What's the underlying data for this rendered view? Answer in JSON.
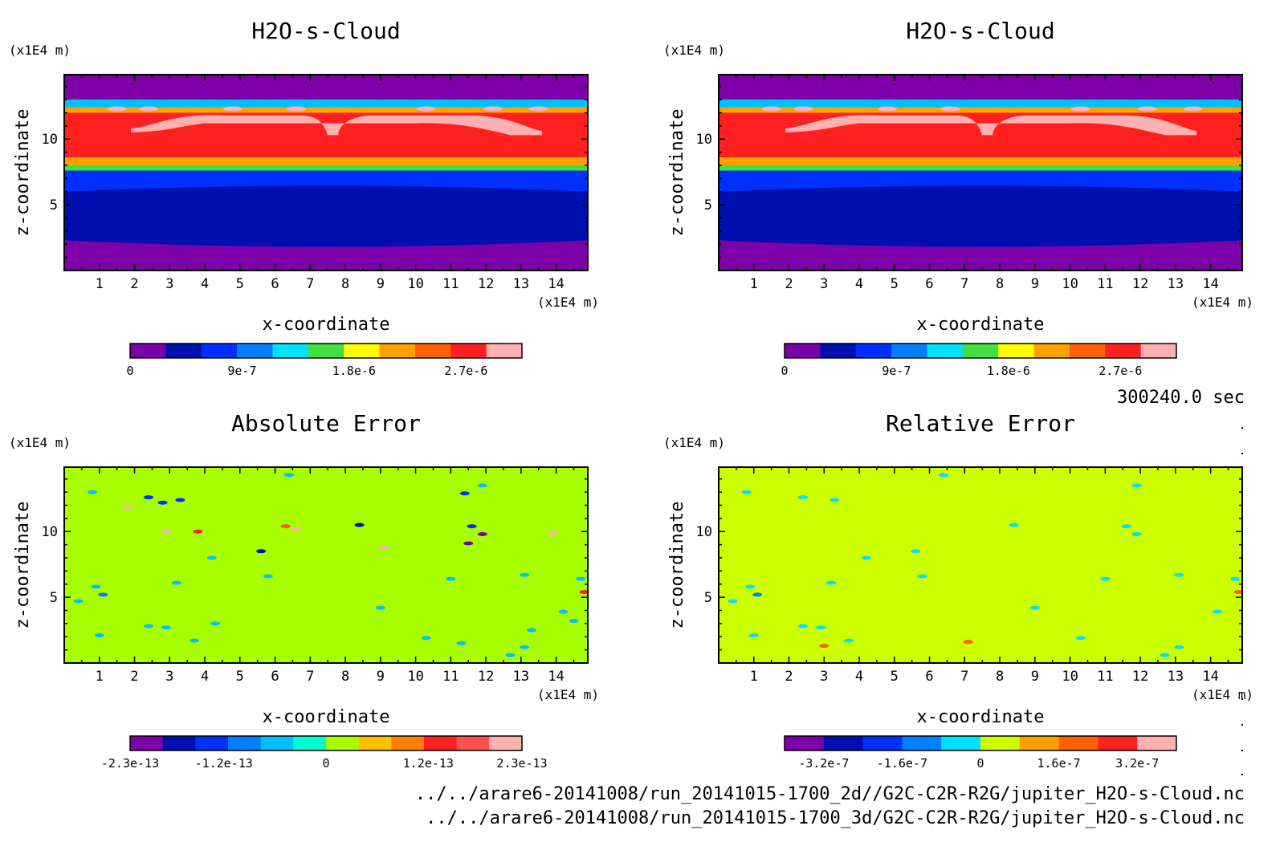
{
  "footer": {
    "time_label": "300240.0 sec",
    "file1": "../../arare6-20141008/run_20141015-1700_2d//G2C-C2R-R2G/jupiter_H2O-s-Cloud.nc",
    "file2": "../../arare6-20141008/run_20141015-1700_3d/G2C-C2R-R2G/jupiter_H2O-s-Cloud.nc"
  },
  "chart_data": [
    {
      "type": "heatmap",
      "title": "H2O-s-Cloud",
      "xlabel": "x-coordinate",
      "ylabel": "z-coordinate",
      "x_unit": "(x1E4 m)",
      "y_unit": "(x1E4 m)",
      "xlim": [
        0,
        14.9
      ],
      "ylim": [
        0,
        14.9
      ],
      "xticks": [
        "1",
        "2",
        "3",
        "4",
        "5",
        "6",
        "7",
        "8",
        "9",
        "10",
        "11",
        "12",
        "13",
        "14"
      ],
      "yticks": [
        "5",
        "10"
      ],
      "colorbar": {
        "colors": [
          "#7d00a8",
          "#0010b0",
          "#0030ff",
          "#0080ff",
          "#00e0ff",
          "#40e040",
          "#ffff00",
          "#ffa000",
          "#ff6000",
          "#ff2020",
          "#ffb0b0"
        ],
        "labels": [
          {
            "value": 0,
            "text": "0"
          },
          {
            "value": 9e-07,
            "text": "9e-7"
          },
          {
            "value": 1.8e-06,
            "text": "1.8e-6"
          },
          {
            "value": 2.7e-06,
            "text": "2.7e-6"
          }
        ],
        "range": [
          0,
          3.15e-06
        ]
      },
      "bands": [
        {
          "z_bottom": 13.0,
          "z_top": 14.9,
          "color": "#7d00a8"
        },
        {
          "z_bottom": 12.4,
          "z_top": 13.0,
          "color": "#00c0ff"
        },
        {
          "z_bottom": 12.0,
          "z_top": 12.4,
          "color": "#ffa000"
        },
        {
          "z_bottom": 8.6,
          "z_top": 12.0,
          "color": "#ff2020"
        },
        {
          "z_bottom": 8.0,
          "z_top": 8.6,
          "color": "#ffa000"
        },
        {
          "z_bottom": 7.6,
          "z_top": 8.0,
          "color": "#40e040"
        },
        {
          "z_bottom": 6.0,
          "z_top": 7.6,
          "color": "#0030ff"
        },
        {
          "z_bottom": 2.3,
          "z_top": 6.0,
          "color": "#0010b0"
        },
        {
          "z_bottom": 0,
          "z_top": 2.3,
          "color": "#7d00a8"
        }
      ]
    },
    {
      "type": "heatmap",
      "title": "H2O-s-Cloud",
      "xlabel": "x-coordinate",
      "ylabel": "z-coordinate",
      "x_unit": "(x1E4 m)",
      "y_unit": "(x1E4 m)",
      "xlim": [
        0,
        14.9
      ],
      "ylim": [
        0,
        14.9
      ],
      "xticks": [
        "1",
        "2",
        "3",
        "4",
        "5",
        "6",
        "7",
        "8",
        "9",
        "10",
        "11",
        "12",
        "13",
        "14"
      ],
      "yticks": [
        "5",
        "10"
      ],
      "colorbar": {
        "colors": [
          "#7d00a8",
          "#0010b0",
          "#0030ff",
          "#0080ff",
          "#00e0ff",
          "#40e040",
          "#ffff00",
          "#ffa000",
          "#ff6000",
          "#ff2020",
          "#ffb0b0"
        ],
        "labels": [
          {
            "value": 0,
            "text": "0"
          },
          {
            "value": 9e-07,
            "text": "9e-7"
          },
          {
            "value": 1.8e-06,
            "text": "1.8e-6"
          },
          {
            "value": 2.7e-06,
            "text": "2.7e-6"
          }
        ],
        "range": [
          0,
          3.15e-06
        ]
      },
      "bands": [
        {
          "z_bottom": 13.0,
          "z_top": 14.9,
          "color": "#7d00a8"
        },
        {
          "z_bottom": 12.4,
          "z_top": 13.0,
          "color": "#00c0ff"
        },
        {
          "z_bottom": 12.0,
          "z_top": 12.4,
          "color": "#ffa000"
        },
        {
          "z_bottom": 8.6,
          "z_top": 12.0,
          "color": "#ff2020"
        },
        {
          "z_bottom": 8.0,
          "z_top": 8.6,
          "color": "#ffa000"
        },
        {
          "z_bottom": 7.6,
          "z_top": 8.0,
          "color": "#40e040"
        },
        {
          "z_bottom": 6.0,
          "z_top": 7.6,
          "color": "#0030ff"
        },
        {
          "z_bottom": 2.3,
          "z_top": 6.0,
          "color": "#0010b0"
        },
        {
          "z_bottom": 0,
          "z_top": 2.3,
          "color": "#7d00a8"
        }
      ]
    },
    {
      "type": "heatmap",
      "title": "Absolute Error",
      "xlabel": "x-coordinate",
      "ylabel": "z-coordinate",
      "x_unit": "(x1E4 m)",
      "y_unit": "(x1E4 m)",
      "xlim": [
        0,
        14.9
      ],
      "ylim": [
        0,
        14.9
      ],
      "xticks": [
        "1",
        "2",
        "3",
        "4",
        "5",
        "6",
        "7",
        "8",
        "9",
        "10",
        "11",
        "12",
        "13",
        "14"
      ],
      "yticks": [
        "5",
        "10"
      ],
      "background": "#a8ff00",
      "colorbar": {
        "colors": [
          "#7d00a8",
          "#0010b0",
          "#0030ff",
          "#0080ff",
          "#00c0ff",
          "#00ffd0",
          "#a8ff00",
          "#ffc000",
          "#ff8000",
          "#ff2020",
          "#ff5050",
          "#ffb0b0"
        ],
        "labels": [
          {
            "value": -2.3e-13,
            "text": "-2.3e-13"
          },
          {
            "value": -1.2e-13,
            "text": "-1.2e-13"
          },
          {
            "value": 0,
            "text": "0"
          },
          {
            "value": 1.2e-13,
            "text": "1.2e-13"
          },
          {
            "value": 2.3e-13,
            "text": "2.3e-13"
          }
        ],
        "range": [
          -2.3e-13,
          2.3e-13
        ]
      },
      "blobs": [
        {
          "x": 0.8,
          "z": 13.0,
          "v": -6e-14
        },
        {
          "x": 2.4,
          "z": 12.6,
          "v": -1.5e-13
        },
        {
          "x": 2.8,
          "z": 12.2,
          "v": -1.5e-13
        },
        {
          "x": 3.3,
          "z": 12.4,
          "v": -1.5e-13
        },
        {
          "x": 1.8,
          "z": 11.8,
          "v": 2e-13
        },
        {
          "x": 2.9,
          "z": 10.0,
          "v": 2e-13
        },
        {
          "x": 3.8,
          "z": 10.0,
          "v": 1.5e-13
        },
        {
          "x": 6.6,
          "z": 10.2,
          "v": 2e-13
        },
        {
          "x": 8.4,
          "z": 10.5,
          "v": -1.6e-13
        },
        {
          "x": 6.3,
          "z": 10.4,
          "v": 1.6e-13
        },
        {
          "x": 9.1,
          "z": 8.8,
          "v": 2e-13
        },
        {
          "x": 11.6,
          "z": 10.4,
          "v": -1.5e-13
        },
        {
          "x": 11.9,
          "z": 9.8,
          "v": -2.3e-13
        },
        {
          "x": 11.5,
          "z": 9.1,
          "v": -2e-13
        },
        {
          "x": 11.9,
          "z": 13.5,
          "v": -6e-14
        },
        {
          "x": 11.4,
          "z": 12.9,
          "v": -1.5e-13
        },
        {
          "x": 5.6,
          "z": 8.5,
          "v": -1.6e-13
        },
        {
          "x": 5.8,
          "z": 6.6,
          "v": -6e-14
        },
        {
          "x": 13.9,
          "z": 9.9,
          "v": 2e-13
        },
        {
          "x": 3.2,
          "z": 6.1,
          "v": -6e-14
        },
        {
          "x": 0.9,
          "z": 5.8,
          "v": -6e-14
        },
        {
          "x": 1.1,
          "z": 5.2,
          "v": -8e-14
        },
        {
          "x": 0.4,
          "z": 4.7,
          "v": -6e-14
        },
        {
          "x": 2.4,
          "z": 2.8,
          "v": -6e-14
        },
        {
          "x": 2.9,
          "z": 2.7,
          "v": -6e-14
        },
        {
          "x": 1.0,
          "z": 2.1,
          "v": -6e-14
        },
        {
          "x": 3.7,
          "z": 1.7,
          "v": -6e-14
        },
        {
          "x": 4.3,
          "z": 3.0,
          "v": -6e-14
        },
        {
          "x": 9.0,
          "z": 4.2,
          "v": -6e-14
        },
        {
          "x": 10.3,
          "z": 1.9,
          "v": -6e-14
        },
        {
          "x": 11.3,
          "z": 1.5,
          "v": -6e-14
        },
        {
          "x": 13.1,
          "z": 1.2,
          "v": -6e-14
        },
        {
          "x": 12.7,
          "z": 0.6,
          "v": -6e-14
        },
        {
          "x": 14.2,
          "z": 3.9,
          "v": -6e-14
        },
        {
          "x": 14.5,
          "z": 3.2,
          "v": -6e-14
        },
        {
          "x": 13.1,
          "z": 6.7,
          "v": -6e-14
        },
        {
          "x": 14.7,
          "z": 6.4,
          "v": -6e-14
        },
        {
          "x": 13.3,
          "z": 2.5,
          "v": -6e-14
        },
        {
          "x": 14.8,
          "z": 5.4,
          "v": 1.2e-13
        },
        {
          "x": 6.4,
          "z": 14.3,
          "v": -6e-14
        },
        {
          "x": 4.2,
          "z": 8.0,
          "v": -6e-14
        },
        {
          "x": 11.0,
          "z": 6.4,
          "v": -6e-14
        }
      ]
    },
    {
      "type": "heatmap",
      "title": "Relative Error",
      "xlabel": "x-coordinate",
      "ylabel": "z-coordinate",
      "x_unit": "(x1E4 m)",
      "y_unit": "(x1E4 m)",
      "xlim": [
        0,
        14.9
      ],
      "ylim": [
        0,
        14.9
      ],
      "xticks": [
        "1",
        "2",
        "3",
        "4",
        "5",
        "6",
        "7",
        "8",
        "9",
        "10",
        "11",
        "12",
        "13",
        "14"
      ],
      "yticks": [
        "5",
        "10"
      ],
      "background": "#ccff00",
      "colorbar": {
        "colors": [
          "#7d00a8",
          "#0010b0",
          "#0030ff",
          "#0080ff",
          "#00e0ff",
          "#ccff00",
          "#ffa000",
          "#ff6000",
          "#ff2020",
          "#ffb0b0"
        ],
        "labels": [
          {
            "value": -3.2e-07,
            "text": "-3.2e-7"
          },
          {
            "value": -1.6e-07,
            "text": "-1.6e-7"
          },
          {
            "value": 0,
            "text": "0"
          },
          {
            "value": 1.6e-07,
            "text": "1.6e-7"
          },
          {
            "value": 3.2e-07,
            "text": "3.2e-7"
          }
        ],
        "range": [
          -4e-07,
          4e-07
        ]
      },
      "blobs": [
        {
          "x": 0.8,
          "z": 13.0,
          "v": -6e-08
        },
        {
          "x": 2.4,
          "z": 12.6,
          "v": -6e-08
        },
        {
          "x": 3.3,
          "z": 12.4,
          "v": -6e-08
        },
        {
          "x": 8.4,
          "z": 10.5,
          "v": -6e-08
        },
        {
          "x": 11.6,
          "z": 10.4,
          "v": -6e-08
        },
        {
          "x": 11.9,
          "z": 9.8,
          "v": -6e-08
        },
        {
          "x": 11.9,
          "z": 13.5,
          "v": -6e-08
        },
        {
          "x": 5.6,
          "z": 8.5,
          "v": -6e-08
        },
        {
          "x": 5.8,
          "z": 6.6,
          "v": -6e-08
        },
        {
          "x": 3.2,
          "z": 6.1,
          "v": -6e-08
        },
        {
          "x": 0.9,
          "z": 5.8,
          "v": -6e-08
        },
        {
          "x": 1.1,
          "z": 5.2,
          "v": -1e-07
        },
        {
          "x": 0.4,
          "z": 4.7,
          "v": -6e-08
        },
        {
          "x": 2.4,
          "z": 2.8,
          "v": -6e-08
        },
        {
          "x": 2.9,
          "z": 2.7,
          "v": -6e-08
        },
        {
          "x": 1.0,
          "z": 2.1,
          "v": -6e-08
        },
        {
          "x": 3.7,
          "z": 1.7,
          "v": -6e-08
        },
        {
          "x": 9.0,
          "z": 4.2,
          "v": -6e-08
        },
        {
          "x": 10.3,
          "z": 1.9,
          "v": -6e-08
        },
        {
          "x": 13.1,
          "z": 1.2,
          "v": -6e-08
        },
        {
          "x": 12.7,
          "z": 0.6,
          "v": -6e-08
        },
        {
          "x": 14.2,
          "z": 3.9,
          "v": -6e-08
        },
        {
          "x": 13.1,
          "z": 6.7,
          "v": -6e-08
        },
        {
          "x": 14.7,
          "z": 6.4,
          "v": -6e-08
        },
        {
          "x": 14.8,
          "z": 5.4,
          "v": 1.6e-07
        },
        {
          "x": 6.4,
          "z": 14.3,
          "v": -6e-08
        },
        {
          "x": 4.2,
          "z": 8.0,
          "v": -6e-08
        },
        {
          "x": 11.0,
          "z": 6.4,
          "v": -6e-08
        },
        {
          "x": 3.0,
          "z": 1.3,
          "v": 1.6e-07
        },
        {
          "x": 7.1,
          "z": 1.6,
          "v": 1.6e-07
        }
      ]
    }
  ]
}
